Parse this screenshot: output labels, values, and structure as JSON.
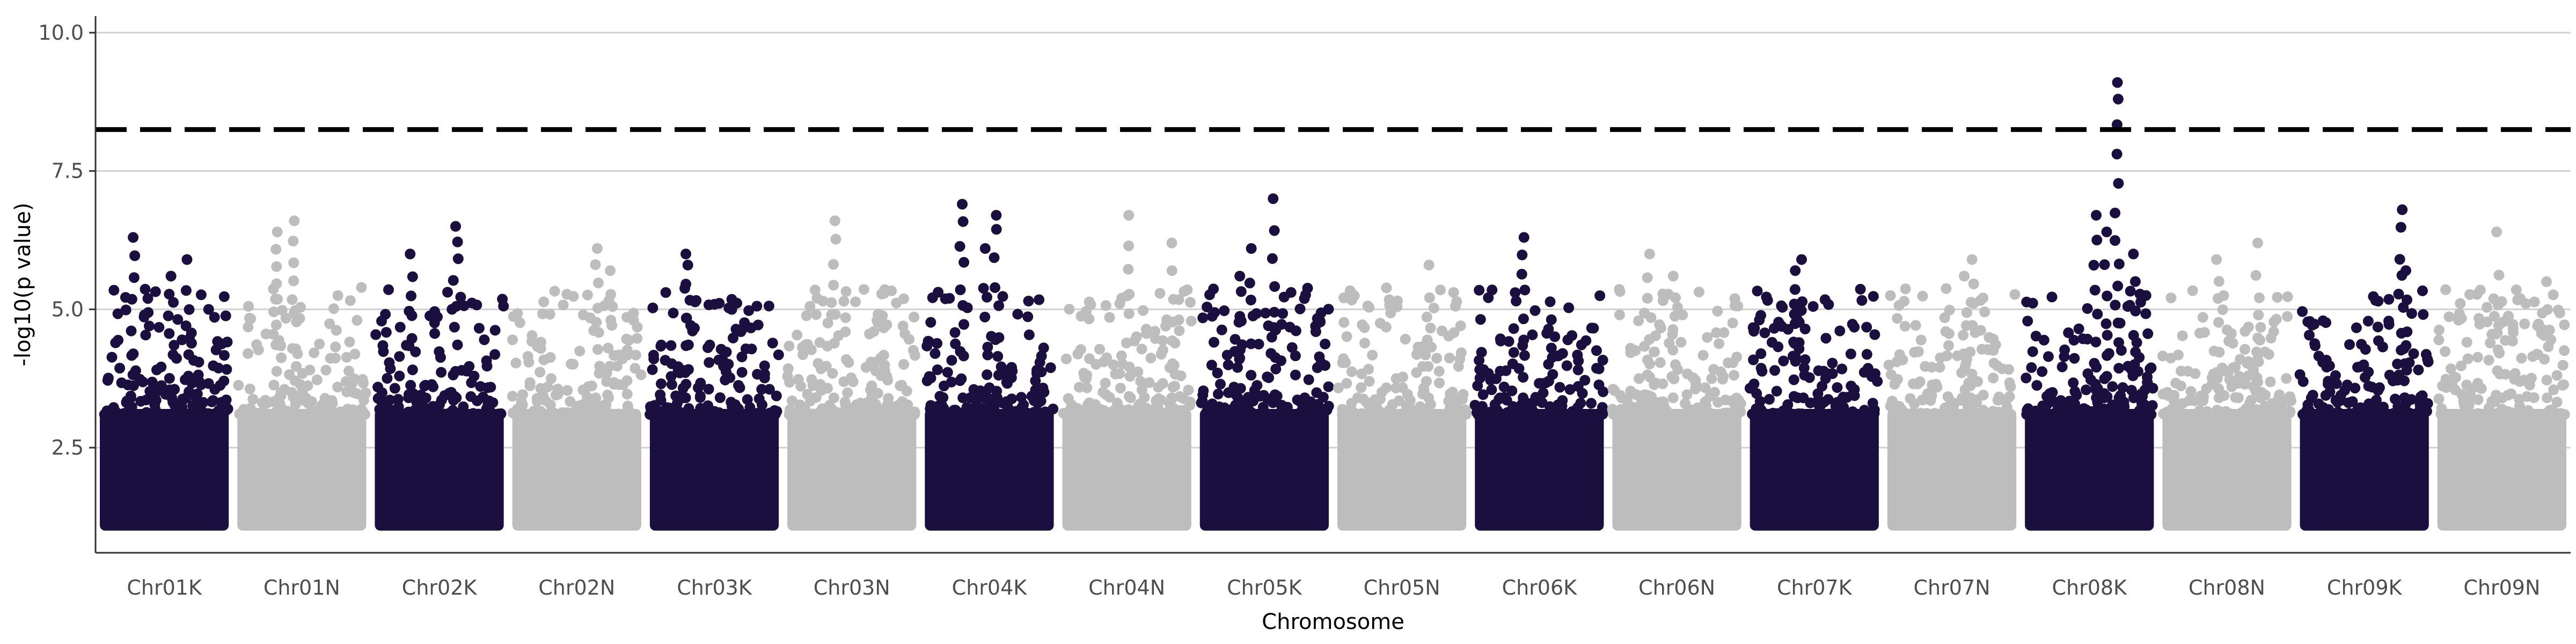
{
  "chart_data": {
    "type": "scatter",
    "subtype": "manhattan",
    "xlabel": "Chromosome",
    "ylabel": "-log10(p value)",
    "categories": [
      "Chr01K",
      "Chr01N",
      "Chr02K",
      "Chr02N",
      "Chr03K",
      "Chr03N",
      "Chr04K",
      "Chr04N",
      "Chr05K",
      "Chr05N",
      "Chr06K",
      "Chr06N",
      "Chr07K",
      "Chr07N",
      "Chr08K",
      "Chr08N",
      "Chr09K",
      "Chr09N"
    ],
    "yticks": [
      2.5,
      5.0,
      7.5,
      10.0
    ],
    "ytick_labels": [
      "2.5",
      "5.0",
      "7.5",
      "10.0"
    ],
    "ylim": [
      0.6,
      10.3
    ],
    "y_min_plotted": 1.0,
    "dense_band_top": 3.2,
    "threshold": {
      "y": 8.25,
      "style": "dashed",
      "color": "#000000"
    },
    "grid": {
      "horizontal_major": true,
      "vertical": false
    },
    "colors": {
      "K": "#1b0f40",
      "N": "#bdbdbd",
      "grid": "#d0d0d0",
      "threshold": "#000000"
    },
    "notable_points": [
      {
        "chromosome": "Chr01K",
        "y": 6.3
      },
      {
        "chromosome": "Chr01K",
        "y": 5.9
      },
      {
        "chromosome": "Chr01K",
        "y": 5.6
      },
      {
        "chromosome": "Chr01N",
        "y": 6.6
      },
      {
        "chromosome": "Chr01N",
        "y": 6.4
      },
      {
        "chromosome": "Chr02K",
        "y": 6.5
      },
      {
        "chromosome": "Chr02K",
        "y": 6.0
      },
      {
        "chromosome": "Chr02N",
        "y": 6.1
      },
      {
        "chromosome": "Chr02N",
        "y": 5.7
      },
      {
        "chromosome": "Chr03K",
        "y": 6.0
      },
      {
        "chromosome": "Chr03K",
        "y": 5.8
      },
      {
        "chromosome": "Chr03N",
        "y": 6.6
      },
      {
        "chromosome": "Chr04K",
        "y": 6.9
      },
      {
        "chromosome": "Chr04K",
        "y": 6.7
      },
      {
        "chromosome": "Chr04K",
        "y": 6.1
      },
      {
        "chromosome": "Chr04N",
        "y": 6.7
      },
      {
        "chromosome": "Chr04N",
        "y": 6.2
      },
      {
        "chromosome": "Chr05K",
        "y": 7.0
      },
      {
        "chromosome": "Chr05K",
        "y": 6.1
      },
      {
        "chromosome": "Chr05K",
        "y": 5.6
      },
      {
        "chromosome": "Chr05N",
        "y": 5.8
      },
      {
        "chromosome": "Chr06K",
        "y": 6.3
      },
      {
        "chromosome": "Chr06N",
        "y": 6.0
      },
      {
        "chromosome": "Chr06N",
        "y": 5.6
      },
      {
        "chromosome": "Chr07K",
        "y": 5.9
      },
      {
        "chromosome": "Chr07K",
        "y": 5.7
      },
      {
        "chromosome": "Chr07N",
        "y": 5.9
      },
      {
        "chromosome": "Chr07N",
        "y": 5.6
      },
      {
        "chromosome": "Chr08K",
        "y": 9.1
      },
      {
        "chromosome": "Chr08K",
        "y": 6.7
      },
      {
        "chromosome": "Chr08K",
        "y": 6.4
      },
      {
        "chromosome": "Chr08K",
        "y": 6.0
      },
      {
        "chromosome": "Chr08N",
        "y": 6.2
      },
      {
        "chromosome": "Chr08N",
        "y": 5.9
      },
      {
        "chromosome": "Chr09K",
        "y": 6.8
      },
      {
        "chromosome": "Chr09K",
        "y": 5.7
      },
      {
        "chromosome": "Chr09N",
        "y": 6.4
      },
      {
        "chromosome": "Chr09N",
        "y": 5.5
      }
    ]
  }
}
